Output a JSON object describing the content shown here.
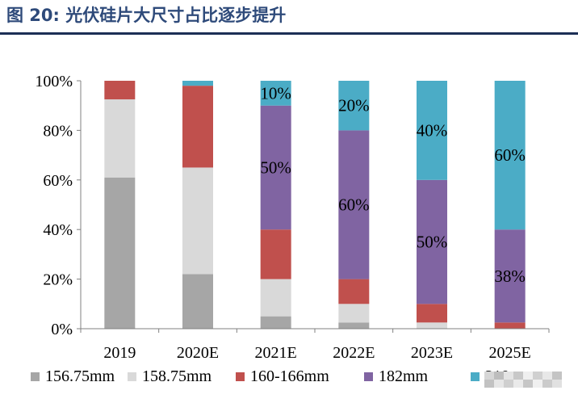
{
  "figure": {
    "title": "图 20:  光伏硅片大尺寸占比逐步提升"
  },
  "chart_data": {
    "type": "bar",
    "stacked": true,
    "categories": [
      "2019",
      "2020E",
      "2021E",
      "2022E",
      "2023E",
      "2025E"
    ],
    "series": [
      {
        "name": "156.75mm",
        "color": "#a6a6a6",
        "values": [
          61,
          22,
          5,
          2.5,
          0,
          0
        ]
      },
      {
        "name": "158.75mm",
        "color": "#d9d9d9",
        "values": [
          31.5,
          43,
          15,
          7.5,
          2.5,
          0
        ]
      },
      {
        "name": "160-166mm",
        "color": "#c0504d",
        "values": [
          7.5,
          33,
          20,
          10,
          7.5,
          2.5
        ]
      },
      {
        "name": "182mm",
        "color": "#8064a2",
        "values": [
          0,
          0,
          50,
          60,
          50,
          37.5
        ]
      },
      {
        "name": "210mm",
        "color": "#4bacc6",
        "values": [
          0,
          2,
          10,
          20,
          40,
          60
        ]
      }
    ],
    "data_labels": [
      {
        "category": "2021E",
        "series": "210mm",
        "text": "10%"
      },
      {
        "category": "2021E",
        "series": "182mm",
        "text": "50%"
      },
      {
        "category": "2022E",
        "series": "210mm",
        "text": "20%"
      },
      {
        "category": "2022E",
        "series": "182mm",
        "text": "60%"
      },
      {
        "category": "2023E",
        "series": "210mm",
        "text": "40%"
      },
      {
        "category": "2023E",
        "series": "182mm",
        "text": "50%"
      },
      {
        "category": "2025E",
        "series": "210mm",
        "text": "60%"
      },
      {
        "category": "2025E",
        "series": "182mm",
        "text": "38%"
      }
    ],
    "y_ticks": [
      "0%",
      "20%",
      "40%",
      "60%",
      "80%",
      "100%"
    ],
    "ylim": [
      0,
      100
    ],
    "grid": false,
    "legend_position": "bottom",
    "legend_labels": [
      "156.75mm",
      "158.75mm",
      "160-166mm",
      "182mm",
      "210"
    ]
  }
}
